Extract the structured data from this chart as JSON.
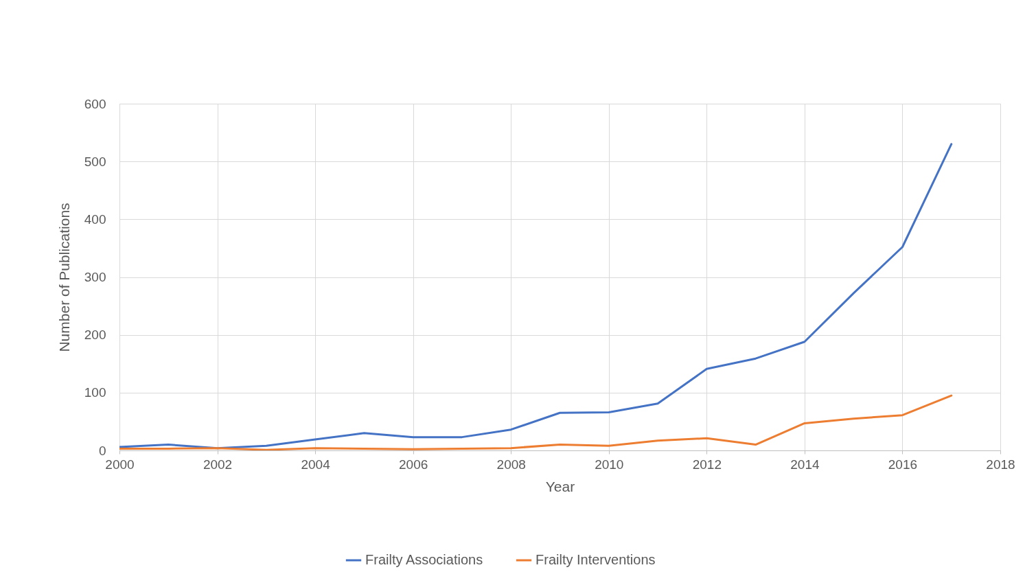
{
  "chart_data": {
    "type": "line",
    "xlabel": "Year",
    "ylabel": "Number of Publications",
    "x": [
      2000,
      2001,
      2002,
      2003,
      2004,
      2005,
      2006,
      2007,
      2008,
      2009,
      2010,
      2011,
      2012,
      2013,
      2014,
      2015,
      2016,
      2017
    ],
    "series": [
      {
        "name": "Frailty Associations",
        "color": "#4472c4",
        "values": [
          6,
          10,
          4,
          8,
          19,
          30,
          23,
          23,
          36,
          65,
          66,
          81,
          141,
          159,
          188,
          272,
          352,
          530
        ]
      },
      {
        "name": "Frailty Interventions",
        "color": "#ed7d31",
        "values": [
          3,
          3,
          4,
          1,
          4,
          3,
          2,
          3,
          4,
          10,
          8,
          17,
          21,
          10,
          47,
          55,
          61,
          95
        ]
      }
    ],
    "xlim": [
      2000,
      2018
    ],
    "xticks": [
      2000,
      2002,
      2004,
      2006,
      2008,
      2010,
      2012,
      2014,
      2016,
      2018
    ],
    "ylim": [
      0,
      600
    ],
    "yticks": [
      0,
      100,
      200,
      300,
      400,
      500,
      600
    ],
    "grid": true,
    "legend": "bottom",
    "marker": "none",
    "line_style": "solid"
  }
}
